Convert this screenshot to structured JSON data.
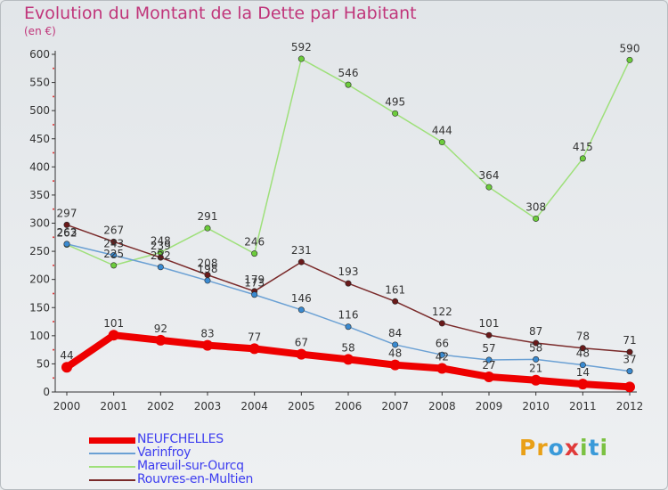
{
  "title": "Evolution du Montant de la Dette par Habitant",
  "subtitle": "(en €)",
  "logo": {
    "text": "Proxiti",
    "colors": [
      "#e9a017",
      "#e9a017",
      "#3a9ad9",
      "#e03a3a",
      "#7bc142",
      "#3a9ad9",
      "#7bc142"
    ]
  },
  "chart_data": {
    "type": "line",
    "x": [
      "2000",
      "2001",
      "2002",
      "2003",
      "2004",
      "2005",
      "2006",
      "2007",
      "2008",
      "2009",
      "2010",
      "2011",
      "2012"
    ],
    "ylim": [
      0,
      600
    ],
    "yticks": [
      0,
      50,
      100,
      150,
      200,
      250,
      300,
      350,
      400,
      450,
      500,
      550,
      600
    ],
    "grid": false,
    "legend": "bottom-left",
    "series": [
      {
        "name": "NEUFCHELLES",
        "color": "#ee0000",
        "marker": "#ee0000",
        "weight": "thick",
        "values": [
          44,
          101,
          92,
          83,
          77,
          67,
          58,
          48,
          42,
          27,
          21,
          14,
          9
        ],
        "labels": [
          "44",
          "101",
          "92",
          "83",
          "77",
          "67",
          "58",
          "48",
          "42",
          "27",
          "21",
          "14",
          ""
        ]
      },
      {
        "name": "Varinfroy",
        "color": "#6aa0d4",
        "marker": "#3a8ad0",
        "weight": "thin",
        "values": [
          263,
          243,
          222,
          198,
          173,
          146,
          116,
          84,
          66,
          57,
          58,
          48,
          37
        ],
        "labels": [
          "263",
          "243",
          "222",
          "198",
          "173",
          "146",
          "116",
          "84",
          "66",
          "57",
          "58",
          "48",
          "37"
        ]
      },
      {
        "name": "Mareuil-sur-Ourcq",
        "color": "#9ee07a",
        "marker": "#6ccc3c",
        "weight": "thin",
        "values": [
          262,
          225,
          248,
          291,
          246,
          592,
          546,
          495,
          444,
          364,
          308,
          415,
          590
        ],
        "labels": [
          "262",
          "225",
          "248",
          "291",
          "246",
          "592",
          "546",
          "495",
          "444",
          "364",
          "308",
          "415",
          "590"
        ]
      },
      {
        "name": "Rouvres-en-Multien",
        "color": "#7a2a2a",
        "marker": "#6a1a1a",
        "weight": "thin",
        "values": [
          297,
          267,
          239,
          208,
          179,
          231,
          193,
          161,
          122,
          101,
          87,
          78,
          71
        ],
        "labels": [
          "297",
          "267",
          "239",
          "208",
          "179",
          "231",
          "193",
          "161",
          "122",
          "101",
          "87",
          "78",
          "71"
        ]
      }
    ]
  }
}
